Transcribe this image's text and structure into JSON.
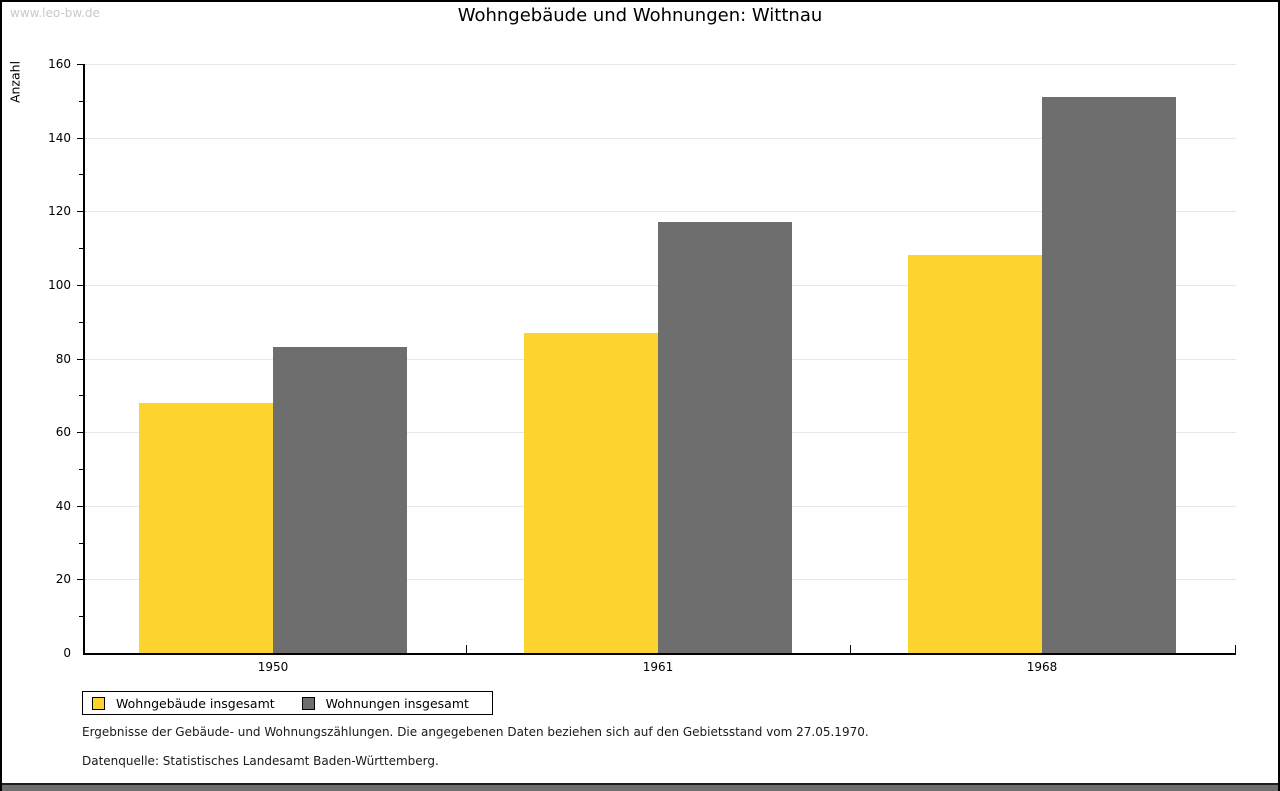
{
  "watermark": "www.leo-bw.de",
  "title": "Wohngebäude und Wohnungen: Wittnau",
  "chart_data": {
    "type": "bar",
    "title": "Wohngebäude und Wohnungen: Wittnau",
    "xlabel": "",
    "ylabel": "Anzahl",
    "categories": [
      "1950",
      "1961",
      "1968"
    ],
    "series": [
      {
        "name": "Wohngebäude insgesamt",
        "color": "#FCD32F",
        "values": [
          68,
          87,
          108
        ]
      },
      {
        "name": "Wohnungen insgesamt",
        "color": "#6E6E6E",
        "values": [
          83,
          117,
          151
        ]
      }
    ],
    "ylim": [
      0,
      160
    ],
    "ytick_step": 20,
    "minor_tick_step": 10,
    "yticks": [
      0,
      20,
      40,
      60,
      80,
      100,
      120,
      140,
      160
    ],
    "grid": "horizontal",
    "legend_position": "bottom-left"
  },
  "footer": {
    "line1": "Ergebnisse der Gebäude- und Wohnungszählungen. Die angegebenen Daten beziehen sich auf den Gebietsstand vom 27.05.1970.",
    "line2": "Datenquelle: Statistisches Landesamt Baden-Württemberg."
  }
}
